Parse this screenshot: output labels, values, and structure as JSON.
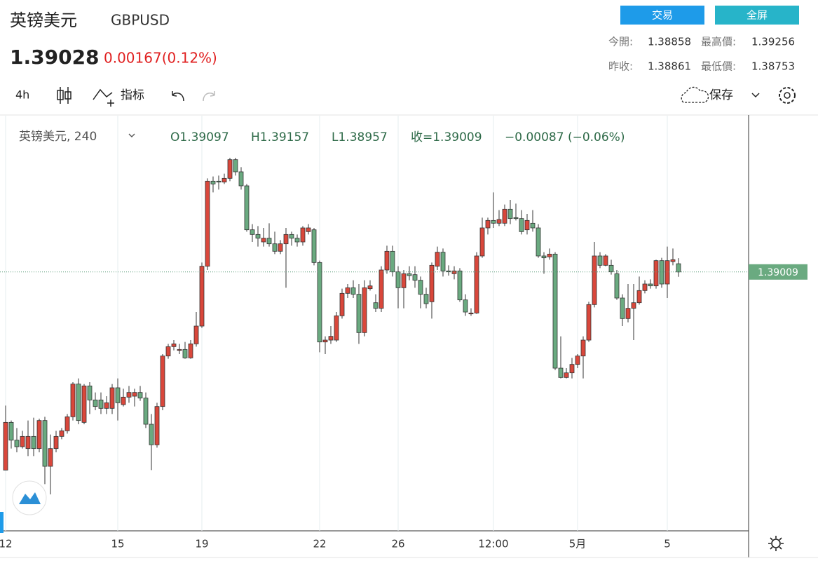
{
  "header": {
    "title": "英镑美元",
    "symbol": "GBPUSD",
    "price": "1.39028",
    "change": "0.00167(0.12%)"
  },
  "buttons": [
    "交易",
    "全屏"
  ],
  "stats": [
    {
      "label": "今開:",
      "value": "1.38858"
    },
    {
      "label": "最高價:",
      "value": "1.39256"
    },
    {
      "label": "昨收:",
      "value": "1.38861"
    },
    {
      "label": "最低價:",
      "value": "1.38753"
    }
  ],
  "toolbar": {
    "interval": "4h",
    "indicators": "指标",
    "save": "保存"
  },
  "chart_data": {
    "type": "candlestick",
    "title": "英镑美元, 240",
    "legend": {
      "open": "O1.39097",
      "high": "H1.39157",
      "low": "L1.38957",
      "close": "收=1.39009",
      "change": "−0.00087 (−0.06%)"
    },
    "categories": [
      "12",
      null,
      null,
      null,
      null,
      null,
      null,
      null,
      null,
      null,
      null,
      null,
      null,
      null,
      null,
      null,
      null,
      null,
      null,
      null,
      "15",
      null,
      null,
      null,
      null,
      null,
      null,
      null,
      null,
      null,
      null,
      null,
      null,
      null,
      null,
      "19",
      null,
      null,
      null,
      null,
      null,
      null,
      null,
      null,
      null,
      null,
      null,
      null,
      null,
      null,
      null,
      null,
      null,
      null,
      null,
      null,
      "22",
      null,
      null,
      null,
      null,
      null,
      null,
      null,
      null,
      null,
      null,
      null,
      null,
      null,
      "26",
      null,
      null,
      null,
      null,
      null,
      null,
      null,
      null,
      null,
      null,
      null,
      null,
      null,
      null,
      null,
      null,
      "12:00",
      null,
      null,
      null,
      null,
      null,
      null,
      null,
      null,
      null,
      null,
      null,
      null,
      null,
      null,
      "5月",
      null,
      null,
      null,
      null,
      null,
      null,
      null,
      null,
      null,
      null,
      null,
      null,
      null,
      null,
      null,
      "5",
      null,
      null
    ],
    "open": [
      1.3689,
      1.374,
      1.3721,
      1.3714,
      1.3712,
      1.3725,
      1.3712,
      1.3742,
      1.3693,
      1.3712,
      1.3725,
      1.3731,
      1.3746,
      1.3781,
      1.374,
      1.3779,
      1.3764,
      1.3764,
      1.3755,
      1.3755,
      1.3777,
      1.3759,
      1.3767,
      1.3768,
      1.3772,
      1.3766,
      1.3738,
      1.3716,
      1.3757,
      1.3811,
      1.3821,
      1.3817,
      1.3818,
      1.3809,
      1.3824,
      1.3843,
      1.3907,
      1.3998,
      1.3998,
      1.3997,
      1.4001,
      1.4021,
      1.4008,
      1.3993,
      1.3946,
      1.3941,
      1.3933,
      1.3937,
      1.3931,
      1.3923,
      1.3931,
      1.3941,
      1.3937,
      1.3933,
      1.3944,
      1.3946,
      1.3911,
      1.3826,
      1.3828,
      1.3828,
      1.3854,
      1.3878,
      1.3884,
      1.3877,
      1.3836,
      1.3883,
      1.3868,
      1.3862,
      1.3903,
      1.3923,
      1.3901,
      1.3884,
      1.3899,
      1.3898,
      1.3892,
      1.3877,
      1.3869,
      1.3907,
      1.3922,
      1.3902,
      1.3899,
      1.3902,
      1.3871,
      1.3856,
      1.3857,
      1.3918,
      1.3948,
      1.3956,
      1.3953,
      1.3953,
      1.3968,
      1.3959,
      1.3958,
      1.3946,
      1.3953,
      1.3948,
      1.3918,
      1.3917,
      1.392,
      1.3798,
      1.3788,
      1.3793,
      1.3802,
      1.3811,
      1.3828,
      1.3866,
      1.3918,
      1.3908,
      1.3908,
      1.3899,
      1.3873,
      1.3851,
      1.3862,
      1.3868,
      1.3881,
      1.3888,
      1.3886,
      1.3913,
      1.3888,
      1.3912,
      1.39097
    ],
    "high": [
      1.3758,
      1.3742,
      1.3734,
      1.3731,
      1.3742,
      1.3745,
      1.3744,
      1.3746,
      1.3727,
      1.3731,
      1.3734,
      1.3749,
      1.3783,
      1.3787,
      1.3781,
      1.3783,
      1.3772,
      1.3772,
      1.3768,
      1.3781,
      1.3787,
      1.3776,
      1.3779,
      1.3776,
      1.3779,
      1.3772,
      1.3749,
      1.3761,
      1.3813,
      1.3824,
      1.3828,
      1.3824,
      1.3826,
      1.3828,
      1.3858,
      1.3911,
      1.4001,
      1.4003,
      1.4004,
      1.4006,
      1.4023,
      1.4023,
      1.4013,
      1.3995,
      1.3952,
      1.395,
      1.3948,
      1.3953,
      1.3944,
      1.3935,
      1.3948,
      1.3944,
      1.3941,
      1.395,
      1.3952,
      1.3948,
      1.3913,
      1.3832,
      1.3843,
      1.3858,
      1.3883,
      1.3888,
      1.3892,
      1.3888,
      1.3892,
      1.3892,
      1.3877,
      1.3907,
      1.3929,
      1.3929,
      1.3907,
      1.3903,
      1.3907,
      1.3907,
      1.3896,
      1.3884,
      1.3911,
      1.3928,
      1.3926,
      1.3908,
      1.3907,
      1.3905,
      1.3877,
      1.3862,
      1.3922,
      1.3959,
      1.3959,
      1.3986,
      1.3967,
      1.3973,
      1.3978,
      1.3974,
      1.3967,
      1.3963,
      1.3967,
      1.3952,
      1.3922,
      1.3926,
      1.3922,
      1.3832,
      1.3798,
      1.3809,
      1.3813,
      1.3832,
      1.3869,
      1.3933,
      1.3922,
      1.392,
      1.3914,
      1.3903,
      1.3877,
      1.3888,
      1.3888,
      1.3896,
      1.3892,
      1.3893,
      1.3914,
      1.3916,
      1.3928,
      1.3926,
      1.39157
    ],
    "low": [
      1.3689,
      1.3712,
      1.3708,
      1.3712,
      1.3704,
      1.3704,
      1.3708,
      1.3674,
      1.3663,
      1.3708,
      1.3722,
      1.3728,
      1.3742,
      1.3738,
      1.3738,
      1.3749,
      1.3753,
      1.3749,
      1.3749,
      1.3749,
      1.3742,
      1.3757,
      1.3761,
      1.3757,
      1.3763,
      1.3734,
      1.3689,
      1.3713,
      1.3753,
      1.3808,
      1.3817,
      1.3813,
      1.3808,
      1.3808,
      1.3821,
      1.3841,
      1.3903,
      1.3986,
      1.3989,
      1.3995,
      1.3998,
      1.4004,
      1.3989,
      1.3944,
      1.3933,
      1.3928,
      1.3928,
      1.3928,
      1.392,
      1.392,
      1.3884,
      1.3929,
      1.3928,
      1.3929,
      1.3941,
      1.3908,
      1.3815,
      1.3813,
      1.3824,
      1.3826,
      1.3851,
      1.3873,
      1.3873,
      1.3824,
      1.3832,
      1.3881,
      1.3858,
      1.3858,
      1.3899,
      1.3896,
      1.3862,
      1.3862,
      1.3892,
      1.3884,
      1.3862,
      1.3862,
      1.3851,
      1.3903,
      1.3896,
      1.3897,
      1.3893,
      1.3869,
      1.3854,
      1.3854,
      1.3856,
      1.3916,
      1.3941,
      1.3948,
      1.395,
      1.395,
      1.3952,
      1.3956,
      1.3941,
      1.3941,
      1.3944,
      1.3916,
      1.3899,
      1.3914,
      1.3796,
      1.3787,
      1.3787,
      1.3787,
      1.3798,
      1.3787,
      1.3826,
      1.3863,
      1.3905,
      1.3907,
      1.3898,
      1.3871,
      1.3843,
      1.3847,
      1.3828,
      1.3866,
      1.3878,
      1.3883,
      1.3883,
      1.3884,
      1.3873,
      1.3908,
      1.38957
    ],
    "close": [
      1.374,
      1.3721,
      1.3714,
      1.3725,
      1.3725,
      1.3712,
      1.3742,
      1.3693,
      1.3712,
      1.3725,
      1.3731,
      1.3746,
      1.3781,
      1.3742,
      1.3779,
      1.3764,
      1.3757,
      1.3755,
      1.3761,
      1.3777,
      1.3761,
      1.3767,
      1.3772,
      1.3772,
      1.3766,
      1.3738,
      1.3716,
      1.3757,
      1.3811,
      1.3821,
      1.3824,
      1.3818,
      1.3809,
      1.3824,
      1.3843,
      1.3907,
      1.3998,
      1.3995,
      1.3997,
      1.4001,
      1.4021,
      1.4008,
      1.3993,
      1.3946,
      1.3941,
      1.3937,
      1.3937,
      1.3931,
      1.3923,
      1.3931,
      1.3941,
      1.3937,
      1.3933,
      1.3948,
      1.3948,
      1.3911,
      1.3826,
      1.3828,
      1.3832,
      1.3854,
      1.3878,
      1.3884,
      1.3877,
      1.3836,
      1.3884,
      1.3886,
      1.3862,
      1.3903,
      1.3923,
      1.3901,
      1.3884,
      1.3899,
      1.3897,
      1.3892,
      1.3877,
      1.3867,
      1.3908,
      1.3922,
      1.3902,
      1.3901,
      1.3902,
      1.3871,
      1.3858,
      1.3857,
      1.3918,
      1.3948,
      1.3956,
      1.3953,
      1.3957,
      1.3968,
      1.3958,
      1.3958,
      1.3944,
      1.3956,
      1.3948,
      1.3918,
      1.3916,
      1.392,
      1.3798,
      1.3788,
      1.3793,
      1.3802,
      1.3811,
      1.3828,
      1.3866,
      1.3918,
      1.3908,
      1.3918,
      1.3901,
      1.3873,
      1.3851,
      1.3862,
      1.3868,
      1.3881,
      1.3888,
      1.3886,
      1.3913,
      1.3888,
      1.3913,
      1.3914,
      1.39009
    ],
    "up_color": "#d9473b",
    "down_color": "#6aaa80",
    "ylim": [
      1.3624,
      1.4068
    ],
    "last_price": 1.39009,
    "grid": true
  }
}
